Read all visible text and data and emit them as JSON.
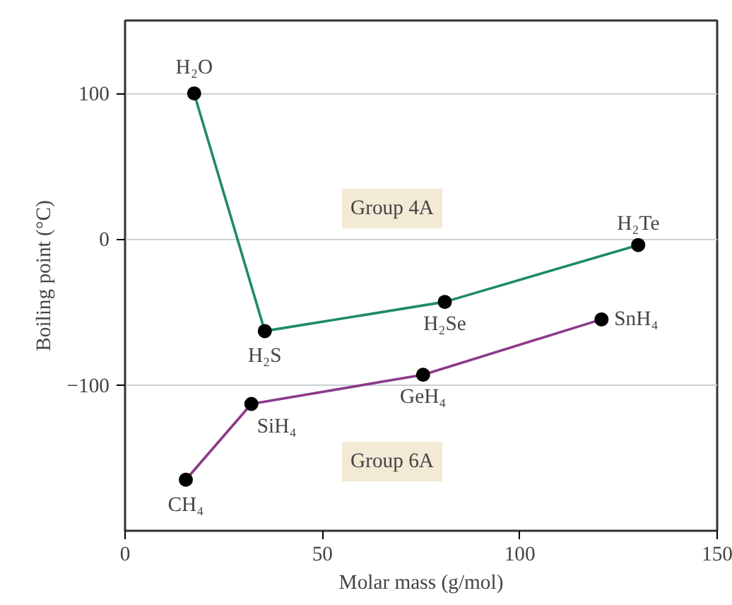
{
  "chart_data": {
    "type": "line",
    "xlabel": "Molar mass (g/mol)",
    "ylabel": "Boiling point (°C)",
    "xlim": [
      0,
      150
    ],
    "xticks": [
      0,
      50,
      100,
      150
    ],
    "ylim": [
      -200,
      150
    ],
    "yticks": [
      -100,
      0,
      100
    ],
    "grid": "y",
    "marker": "circle",
    "line_style": "solid",
    "series": [
      {
        "x": [
          17.5,
          35.4,
          81,
          130
        ],
        "values": [
          100,
          -63,
          -43,
          -4
        ],
        "color": "#1e8a6a"
      },
      {
        "x": [
          15.4,
          32,
          75.5,
          120.7
        ],
        "values": [
          -165,
          -113,
          -93,
          -55
        ],
        "color": "#8b3a8b"
      }
    ],
    "annotations": [
      {
        "text": "H₂O",
        "x": 17.5,
        "y": 100
      },
      {
        "text": "H₂S",
        "x": 35.4,
        "y": -63
      },
      {
        "text": "H₂Se",
        "x": 81,
        "y": -43
      },
      {
        "text": "H₂Te",
        "x": 130,
        "y": -4
      },
      {
        "text": "CH₄",
        "x": 15.4,
        "y": -165
      },
      {
        "text": "SiH₄",
        "x": 32,
        "y": -113
      },
      {
        "text": "GeH₄",
        "x": 75.5,
        "y": -93
      },
      {
        "text": "SnH₄",
        "x": 120.7,
        "y": -55
      },
      "Group 4A",
      "Group 6A"
    ]
  }
}
